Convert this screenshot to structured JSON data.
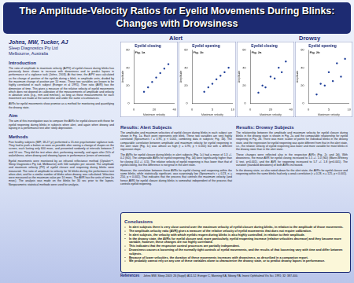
{
  "poster": {
    "title_lines": [
      "The Amplitude-Velocity Ratios for Eyelid Movements During Blinks:",
      "Changes with Drowsiness"
    ],
    "authors": "Johns, MW, Tucker, AJ",
    "affiliation": [
      "Sleep Diagnostics Pty Ltd",
      "Melbourne, Australia"
    ],
    "left_sections": [
      {
        "heading": "Introduction",
        "paragraphs": [
          "The ratio of amplitude to maximum velocity (A/PV) of eyelid closure during blinks has previously been shown to increase with drowsiness and to predict lapses in performance of a vigilance task (Johns, 2003). At that time, the A/PV was calculated as the change of position of the eyelids during a blink, in amplitude units, divided by the maximum change of position per 10 msec. These two variables are known to be highly correlated in each subject (Evinger et al 1991). Their ratio (AVR) has the dimension of time. This gives a measure of the relative velocity of eyelid movements which does not depend on calibration of the measurements of amplitude and velocity in absolute units (e.g., mm and mm/sec), as long as those measurements for each movement are made at the same time and under the same circumstances.",
          "AVRs for eyelid movements show promise as a method for monitoring and quantifying the drowsy state."
        ]
      },
      {
        "heading": "Aim",
        "paragraphs": [
          "The aim of this investigation was to compare the AVRs for eyelid closure with those for eyelid reopening during blinks in subjects when alert, and again when drowsy and lapsing in a performance test after sleep deprivation."
        ]
      },
      {
        "heading": "Methods",
        "paragraphs": [
          "Five healthy subjects (M/F, 18-27 yr) performed a 15-min psychomotor vigilance task. They had to push a button as soon as possible after seeing a change of shapes on the screen, each lasting only 600 msec, and presented randomly at intervals between 2 and 10 sec. They did the test when alert, performing normally, and again after 24-h of wakefulness, when drowsy and showing lapses in performance (errors of omission).",
          "Eyelid movements were monitored by an infrared reflectance method (Optalert™, Sleep Diagnostics Pty Ltd, Melbourne) with 500 samples per second. The amplitude and maximum velocity (PV) of eyelid closure and reopening during blinks were measured. The ratio of amplitude to velocity for 50 blinks during the performance test when alert, and for a similar number of blinks when drowsy, was calculated. Velocities were measured as the maximum value per 10 msec. The AVR has the units of time (in msec). The analysis was made on the blinks for 30 sec prior to the lapses. Nonparametric statistical methods were used for analysis."
        ]
      }
    ],
    "groups": [
      "Alert",
      "Drowsy"
    ],
    "results": [
      {
        "heading": "Results: Alert Subjects",
        "paragraphs": [
          "The amplitudes and maximum velocities of eyelid closure during blinks in each subject are shown in Fig. 1a. Each point represents one blink. These two variables are very highly correlated (Spearman's r = 0.95, p < 0.001, combining data in subjects; Fig. 1b). The comparable correlation between amplitude and maximum velocity for eyelid reopening in the alert state (Fig. 1c) was almost as high (r = 0.93, p < 0.001) but with a different regression slope.",
          "The AVRs for eyelid closure during blinks in alert subjects (Fig. 1c) had a mean of 1.3 +/- 0.2 (SD). The comparable AVRs for eyelid reopening (Fig. 1d) were significantly higher than for closing (4.4 +/- 0.5). The relative velocity of eyelid reopening is thus lower than that of eyelid closing, but this difference is not great in the alert state.",
          "However, the correlation between these AVRs for eyelid closing and reopening within the same blinks, while statistically significant, was surprisingly low (Spearman's r = 0.23, n = 250, p < 0.001). That indicates that the process that controls the maximum velocity (and hence AVR) for eyelid closure during blinks is somewhat independent of the process that controls eyelid reopening."
        ]
      },
      {
        "heading": "Results: Drowsy Subjects",
        "paragraphs": [
          "The relationship between the amplitude and maximum velocity for eyelid closure during blinks in the drowsy state is shown in Fig. 2a and the comparable relationship for eyelid reopening in Fig. 2b. There was more scatter of points for individual blinks in the drowsy state, and the regression for eyelid reopening was quite different from that in the alert state, i.e., the relative velocity of eyelid reopening was lower and more variable for most blinks in the drowsy state than in the alert state.",
          "These changes were reflected also in the respective AVRs (Fig. 2c and 2d). With drowsiness, the mean AVR for eyelid closing increased to 1.5 +/- 1.0 (SD) (Mann-Whitney U test, p<0.001), and the AVR for reopening increased to 5.7 +/- 1.8 (p<0.001). The variation (standard deviations) of both AVRs increased.",
          "In the drowsy state, as also noted above for the alert state, the AVRs for eyelid closure and reopening within the same blinks had only a weak correlation (r = 0.28, n = 125, p < 0.001)."
        ]
      }
    ],
    "conclusions": {
      "heading": "Conclusions",
      "bullets": [
        "In alert subjects there is very close control over the maximum velocity of eyelid closure during blinks, in relation to the amplitude of those movements.",
        "The amplitude-velocity ratio (AVR) gives a measure of the relative velocity of eyelid movements that does not require calibration.",
        "In alert subjects, the velocity with which eyelids reopen during blinks is also highly controlled, in relation to their amplitude.",
        "In the drowsy state, the AVRs for eyelid closure and, more particularly, eyelid reopening increase (relative velocities decrease) and they become more variable, however, these changes are not highly correlated.",
        "This indicates that the respective control processes are partially independent.",
        "Drowsiness causes a loosening of the normally tight controls of eyelid movements, and the results of that loosening vary with time and differ between subjects.",
        "Because of lower velocities, the duration of these movements increases with drowsiness, as described in a companion report.",
        "We probably cannot rely on any one of these variables alone to characterize the drowsy state, or to predict drowsy lapses in performance."
      ]
    },
    "references": {
      "heading": "References",
      "text": "Johns MW. Sleep 2003; 26 (Suppl): A51-52.   Evinger C, Manning KA, Sibony PA. Invest Ophthalmol Vis Sci. 1991; 32: 387-400."
    }
  },
  "chart_data": [
    {
      "type": "scatter",
      "title": "Eyelid closing",
      "annotation": "Fig. 1a",
      "x_label": "Maximum velocity",
      "y_label": "Amplitude",
      "x": [
        10,
        14,
        18,
        22,
        26,
        30,
        34
      ],
      "values": [
        13,
        18,
        24,
        29,
        34,
        39,
        44
      ],
      "color": "#1f3f99",
      "xlim": [
        0,
        40
      ],
      "xticks": [
        0,
        20,
        40
      ],
      "ylim": [
        0,
        60
      ],
      "yticks": [
        0,
        20,
        40,
        60
      ],
      "grid": false
    },
    {
      "type": "scatter",
      "title": "Eyelid opening",
      "annotation": "Fig. 1b",
      "x_label": "Maximum velocity",
      "y_label": "Amplitude",
      "x": [
        3,
        4,
        5,
        6,
        7,
        8,
        9
      ],
      "values": [
        13,
        18,
        22,
        27,
        31,
        35,
        40
      ],
      "color": "#1f3f99",
      "xlim": [
        0,
        10
      ],
      "xticks": [
        0,
        5,
        10
      ],
      "ylim": [
        0,
        60
      ],
      "yticks": [
        0,
        20,
        40,
        60
      ],
      "grid": false
    },
    {
      "type": "scatter",
      "title": "Eyelid closing",
      "annotation": "Fig. 2a",
      "x_label": "Maximum velocity",
      "y_label": "Amplitude",
      "x": [
        8,
        12,
        15,
        20,
        24,
        28,
        31,
        35
      ],
      "values": [
        12,
        20,
        18,
        30,
        28,
        40,
        35,
        47
      ],
      "color": "#1f3f99",
      "xlim": [
        0,
        40
      ],
      "xticks": [
        0,
        20,
        40
      ],
      "ylim": [
        0,
        60
      ],
      "yticks": [
        0,
        20,
        40,
        60
      ],
      "grid": false
    },
    {
      "type": "scatter",
      "title": "Eyelid opening",
      "annotation": "Fig. 2b",
      "x_label": "Maximum velocity",
      "y_label": "Amplitude",
      "x": [
        2,
        3,
        4,
        5,
        6,
        7,
        8,
        9
      ],
      "values": [
        10,
        22,
        20,
        35,
        25,
        45,
        30,
        50
      ],
      "color": "#1f3f99",
      "xlim": [
        0,
        10
      ],
      "xticks": [
        0,
        5,
        10
      ],
      "ylim": [
        0,
        60
      ],
      "yticks": [
        0,
        20,
        40,
        60
      ],
      "grid": false
    }
  ]
}
